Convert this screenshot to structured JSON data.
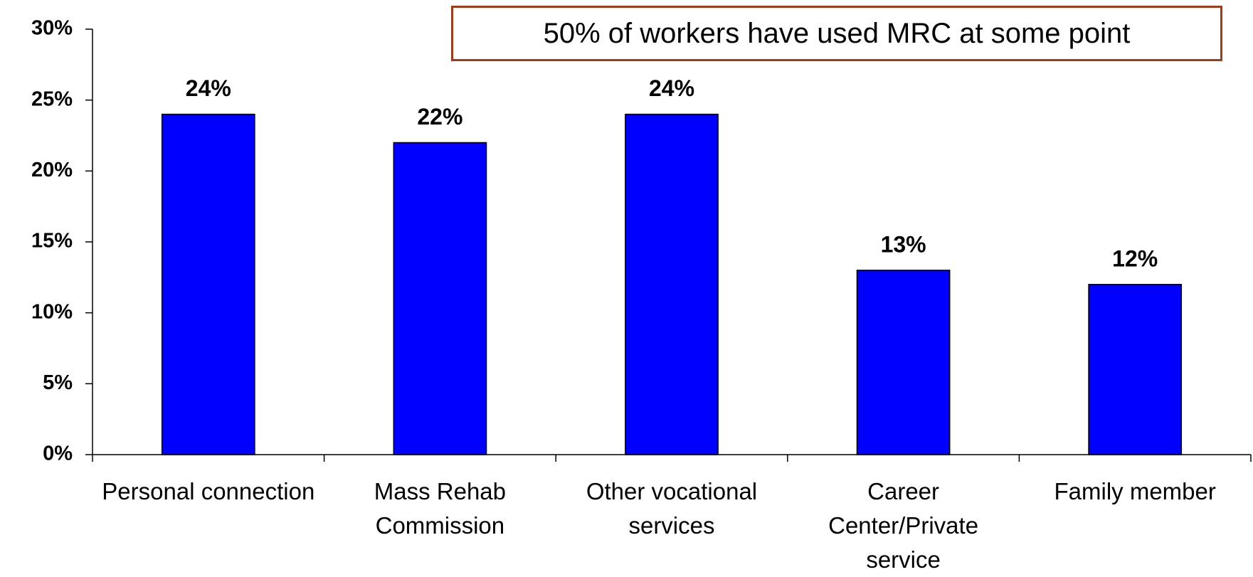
{
  "chart_data": {
    "type": "bar",
    "annotation": "50% of workers have used MRC at some point",
    "categories": [
      "Personal connection",
      "Mass Rehab Commission",
      "Other vocational services",
      "Career Center/Private service",
      "Family member"
    ],
    "values": [
      24,
      22,
      24,
      13,
      12
    ],
    "value_labels": [
      "24%",
      "22%",
      "24%",
      "13%",
      "12%"
    ],
    "color": "#0000ff",
    "ylim": [
      0,
      30
    ],
    "yticks": [
      {
        "value": 0,
        "label": "0%"
      },
      {
        "value": 5,
        "label": "5%"
      },
      {
        "value": 10,
        "label": "10%"
      },
      {
        "value": 15,
        "label": "15%"
      },
      {
        "value": 20,
        "label": "20%"
      },
      {
        "value": 25,
        "label": "25%"
      },
      {
        "value": 30,
        "label": "30%"
      }
    ],
    "grid": false
  }
}
